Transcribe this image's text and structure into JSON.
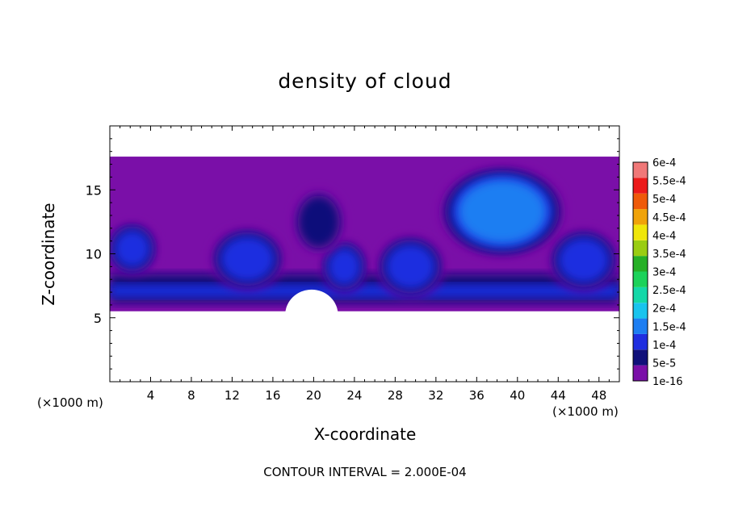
{
  "chart_data": {
    "type": "heatmap",
    "title": "density of cloud",
    "xlabel": "X-coordinate",
    "ylabel": "Z-coordinate",
    "x_unit_left": "(×1000 m)",
    "x_unit_right": "(×1000 m)",
    "footnote": "CONTOUR INTERVAL = 2.000E-04",
    "xlim": [
      0,
      50
    ],
    "ylim": [
      0,
      20
    ],
    "xticks": [
      4,
      8,
      12,
      16,
      20,
      24,
      28,
      32,
      36,
      40,
      44,
      48
    ],
    "xtick_labels": [
      "4",
      "8",
      "12",
      "16",
      "20",
      "24",
      "28",
      "32",
      "36",
      "40",
      "44",
      "48"
    ],
    "yticks": [
      5,
      10,
      15
    ],
    "ytick_labels": [
      "5",
      "10",
      "15"
    ],
    "cloud_layer": {
      "base_z": 5.5,
      "top_z": 17.6
    },
    "colorbar": {
      "labels": [
        "1e-16",
        "5e-5",
        "1e-4",
        "1.5e-4",
        "2e-4",
        "2.5e-4",
        "3e-4",
        "3.5e-4",
        "4e-4",
        "4.5e-4",
        "5e-4",
        "5.5e-4",
        "6e-4"
      ],
      "colors": [
        "#7a0fa8",
        "#10107a",
        "#1f2ee0",
        "#1d7ef2",
        "#19c4ee",
        "#14d8a8",
        "#1cd25a",
        "#26b026",
        "#9acd12",
        "#f0e60a",
        "#f0a30a",
        "#ef5a0a",
        "#ec1a1a",
        "#f07878"
      ]
    },
    "features": [
      {
        "kind": "blob",
        "x": 38.5,
        "z": 13.3,
        "rx": 6.2,
        "rz": 3.6,
        "value": 0.00019
      },
      {
        "kind": "blob",
        "x": 13.5,
        "z": 9.6,
        "rx": 3.6,
        "rz": 2.4,
        "value": 0.000145
      },
      {
        "kind": "blob",
        "x": 29.5,
        "z": 9.0,
        "rx": 3.3,
        "rz": 2.4,
        "value": 0.000145
      },
      {
        "kind": "blob",
        "x": 2.2,
        "z": 10.4,
        "rx": 2.4,
        "rz": 2.0,
        "value": 0.00014
      },
      {
        "kind": "blob",
        "x": 46.5,
        "z": 9.5,
        "rx": 3.4,
        "rz": 2.4,
        "value": 0.00014
      },
      {
        "kind": "blob",
        "x": 23.0,
        "z": 9.0,
        "rx": 2.2,
        "rz": 2.0,
        "value": 0.00013
      },
      {
        "kind": "blob",
        "x": 20.5,
        "z": 12.5,
        "rx": 2.5,
        "rz": 2.5,
        "value": 8e-05
      }
    ]
  }
}
